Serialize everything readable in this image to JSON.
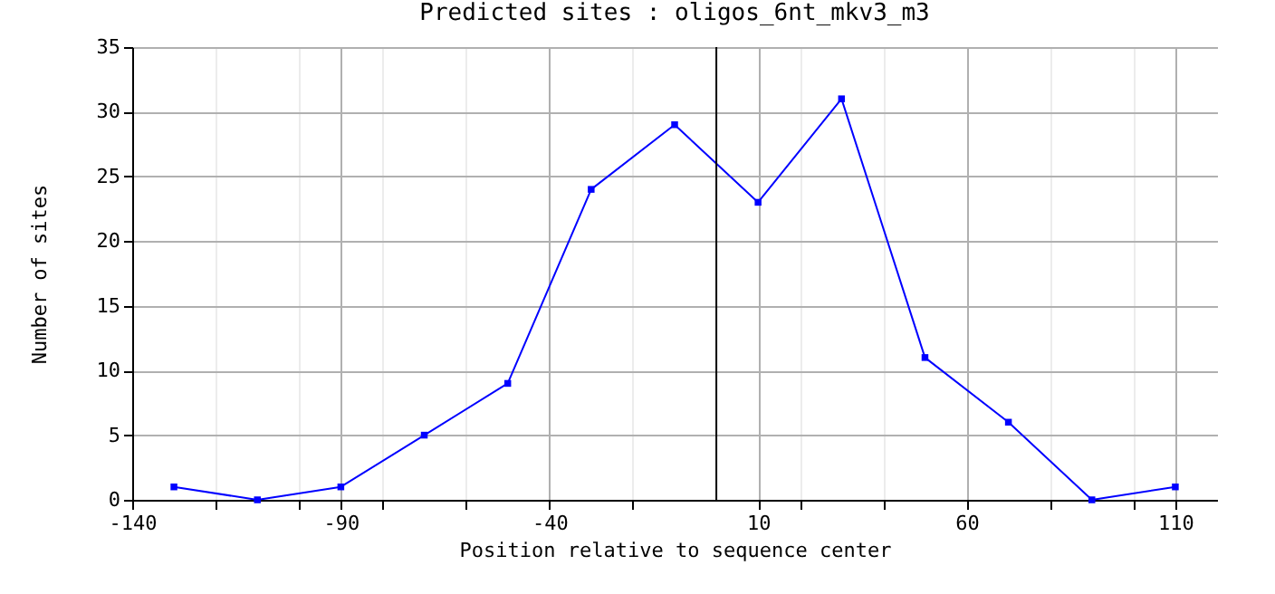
{
  "chart_data": {
    "type": "line",
    "title": "Predicted sites : oligos_6nt_mkv3_m3",
    "xlabel": "Position relative to sequence center",
    "ylabel": "Number of sites",
    "x": [
      -130,
      -110,
      -90,
      -70,
      -50,
      -30,
      -10,
      10,
      30,
      50,
      70,
      90,
      110
    ],
    "series": [
      {
        "color": "#0000ff",
        "values": [
          1,
          0,
          1,
          5,
          9,
          24,
          29,
          23,
          31,
          11,
          6,
          0,
          1
        ]
      }
    ],
    "xlim": [
      -140,
      120
    ],
    "xticks": [
      -140,
      -90,
      -40,
      10,
      60,
      110,
      {
        "value": -120,
        "label": null
      },
      {
        "value": -100,
        "label": null
      },
      {
        "value": -80,
        "label": null
      },
      {
        "value": -60,
        "label": null
      },
      {
        "value": -20,
        "label": null
      },
      {
        "value": 20,
        "label": null
      },
      {
        "value": 40,
        "label": null
      },
      {
        "value": 80,
        "label": null
      },
      {
        "value": 100,
        "label": null
      }
    ],
    "ylim": [
      0,
      35
    ],
    "yticks": [
      0,
      5,
      10,
      15,
      20,
      25,
      30,
      35
    ],
    "ref_lines": [
      {
        "axis": "x",
        "value": 0,
        "color": "#000000"
      }
    ],
    "grid": true,
    "marker": "square",
    "line_style": "solid"
  }
}
